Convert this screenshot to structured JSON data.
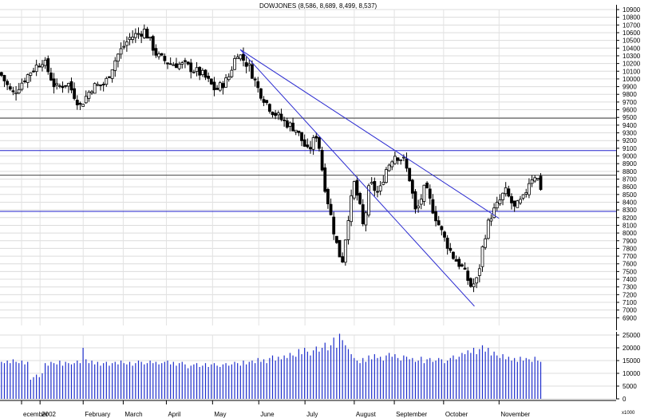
{
  "chart_data": [
    {
      "type": "candlestick",
      "title": "DOWJONES (8,586, 8,689, 8,499, 8,537)",
      "ylim": [
        6800,
        10900
      ],
      "yticks": [
        6900,
        7000,
        7100,
        7200,
        7300,
        7400,
        7500,
        7600,
        7700,
        7800,
        7900,
        8000,
        8100,
        8200,
        8300,
        8400,
        8500,
        8600,
        8700,
        8800,
        8900,
        9000,
        9100,
        9200,
        9300,
        9400,
        9500,
        9600,
        9700,
        9800,
        9900,
        10000,
        10100,
        10200,
        10300,
        10400,
        10500,
        10600,
        10700,
        10800,
        10900
      ],
      "xticks": [
        "ecember",
        "2002",
        "February",
        "March",
        "April",
        "May",
        "June",
        "July",
        "August",
        "September",
        "October",
        "November"
      ],
      "x_positions": [
        0.035,
        0.065,
        0.135,
        0.2,
        0.27,
        0.345,
        0.42,
        0.495,
        0.575,
        0.64,
        0.72,
        0.81
      ],
      "horizontal_lines": [
        {
          "value": 9490,
          "color": "#444444"
        },
        {
          "value": 9070,
          "color": "#2222cc"
        },
        {
          "value": 8750,
          "color": "#444444"
        },
        {
          "value": 8280,
          "color": "#2222cc"
        }
      ],
      "trend_lines": [
        {
          "from": [
            0.39,
            10380
          ],
          "to": [
            0.81,
            8190
          ]
        },
        {
          "from": [
            0.39,
            10380
          ],
          "to": [
            0.77,
            7050
          ]
        }
      ],
      "path": [
        [
          0.0,
          10080
        ],
        [
          0.02,
          9800
        ],
        [
          0.05,
          10100
        ],
        [
          0.07,
          10250
        ],
        [
          0.09,
          9880
        ],
        [
          0.11,
          9950
        ],
        [
          0.13,
          9650
        ],
        [
          0.15,
          9900
        ],
        [
          0.17,
          9930
        ],
        [
          0.19,
          10300
        ],
        [
          0.21,
          10530
        ],
        [
          0.235,
          10630
        ],
        [
          0.255,
          10300
        ],
        [
          0.275,
          10200
        ],
        [
          0.3,
          10180
        ],
        [
          0.33,
          10050
        ],
        [
          0.35,
          9850
        ],
        [
          0.37,
          10000
        ],
        [
          0.385,
          10350
        ],
        [
          0.405,
          10150
        ],
        [
          0.42,
          9850
        ],
        [
          0.44,
          9600
        ],
        [
          0.46,
          9450
        ],
        [
          0.48,
          9350
        ],
        [
          0.5,
          9050
        ],
        [
          0.515,
          9300
        ],
        [
          0.525,
          8700
        ],
        [
          0.535,
          8300
        ],
        [
          0.545,
          7900
        ],
        [
          0.555,
          7600
        ],
        [
          0.565,
          8200
        ],
        [
          0.575,
          8650
        ],
        [
          0.585,
          8300
        ],
        [
          0.59,
          8050
        ],
        [
          0.6,
          8650
        ],
        [
          0.615,
          8500
        ],
        [
          0.625,
          8800
        ],
        [
          0.64,
          9020
        ],
        [
          0.655,
          8950
        ],
        [
          0.665,
          8700
        ],
        [
          0.675,
          8250
        ],
        [
          0.69,
          8600
        ],
        [
          0.705,
          8250
        ],
        [
          0.72,
          7950
        ],
        [
          0.735,
          7700
        ],
        [
          0.75,
          7550
        ],
        [
          0.765,
          7300
        ],
        [
          0.775,
          7400
        ],
        [
          0.785,
          7900
        ],
        [
          0.795,
          8200
        ],
        [
          0.81,
          8400
        ],
        [
          0.82,
          8550
        ],
        [
          0.835,
          8320
        ],
        [
          0.85,
          8450
        ],
        [
          0.86,
          8700
        ],
        [
          0.87,
          8760
        ],
        [
          0.88,
          8540
        ]
      ]
    },
    {
      "type": "bar",
      "title": "",
      "ylim": [
        0,
        25000
      ],
      "yticks": [
        0,
        5000,
        10000,
        15000,
        20000,
        25000
      ],
      "axis_note": "x1000",
      "values": [
        14500,
        14000,
        15000,
        14000,
        15500,
        14500,
        14000,
        15000,
        13500,
        14500,
        7500,
        8500,
        9500,
        8500,
        10000,
        14000,
        13000,
        14500,
        14000,
        13500,
        15000,
        13000,
        14500,
        14000,
        13500,
        14000,
        15000,
        14000,
        20000,
        15500,
        14000,
        15000,
        13500,
        14500,
        13000,
        14000,
        14500,
        13000,
        14000,
        14500,
        13500,
        15000,
        14000,
        13500,
        14500,
        13000,
        14000,
        15000,
        14500,
        13500,
        14000,
        15000,
        14000,
        14500,
        13500,
        14000,
        14500,
        15000,
        13500,
        14500,
        13000,
        14000,
        14500,
        13500,
        12000,
        13000,
        13500,
        14000,
        12500,
        13000,
        14000,
        12500,
        13500,
        14000,
        13000,
        12500,
        13500,
        14000,
        13000,
        13500,
        14500,
        14000,
        13000,
        15000,
        13500,
        14500,
        15000,
        14000,
        16000,
        14500,
        15500,
        14000,
        16000,
        17000,
        15000,
        16500,
        15500,
        17000,
        16000,
        18000,
        17000,
        16500,
        19500,
        17500,
        20000,
        18500,
        17000,
        19000,
        20500,
        18500,
        20000,
        22000,
        19000,
        21000,
        24000,
        20000,
        25500,
        23000,
        21000,
        19500,
        17500,
        16000,
        15000,
        14000,
        16000,
        14500,
        17000,
        15500,
        17500,
        16000,
        16500,
        15000,
        17000,
        18000,
        16500,
        17500,
        16000,
        15000,
        17000,
        16500,
        15500,
        16000,
        14500,
        15000,
        16500,
        14000,
        15500,
        16000,
        14500,
        15000,
        16000,
        15500,
        14000,
        15000,
        16000,
        17000,
        15500,
        16500,
        18000,
        17500,
        19000,
        18000,
        20000,
        17500,
        19500,
        21000,
        18500,
        20000,
        17000,
        18500,
        17000,
        16000,
        17500,
        15500,
        16500,
        15000,
        16000,
        14500,
        16500,
        15000,
        16000,
        15500,
        14500,
        16500,
        15000,
        14500
      ]
    }
  ]
}
